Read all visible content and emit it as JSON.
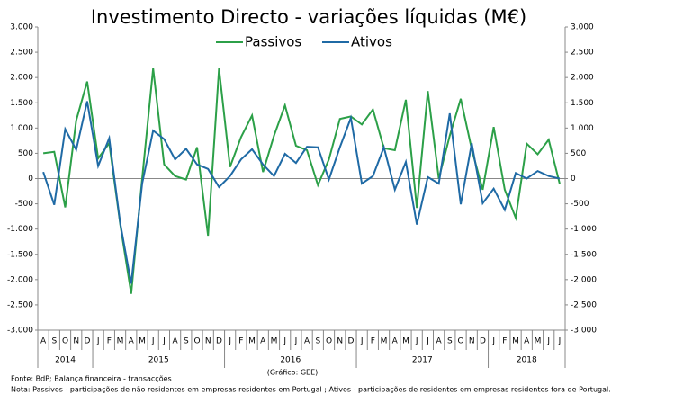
{
  "chart_data": {
    "type": "line",
    "title": "Investimento  Directo - variações líquidas (M€)",
    "categories": [
      "A",
      "S",
      "O",
      "N",
      "D",
      "J",
      "F",
      "M",
      "A",
      "M",
      "J",
      "J",
      "A",
      "S",
      "O",
      "N",
      "D",
      "J",
      "F",
      "M",
      "A",
      "M",
      "J",
      "J",
      "A",
      "S",
      "O",
      "N",
      "D",
      "J",
      "F",
      "M",
      "A",
      "M",
      "J",
      "J",
      "A",
      "S",
      "O",
      "N",
      "D",
      "J",
      "F",
      "M",
      "A",
      "M",
      "J",
      "J"
    ],
    "year_labels": [
      "2014",
      null,
      null,
      null,
      null,
      "2015",
      null,
      null,
      null,
      null,
      null,
      null,
      null,
      null,
      null,
      null,
      null,
      "2016",
      null,
      null,
      null,
      null,
      null,
      null,
      null,
      null,
      null,
      null,
      null,
      "2017",
      null,
      null,
      null,
      null,
      null,
      null,
      null,
      null,
      null,
      null,
      null,
      "2018",
      null,
      null,
      null,
      null,
      null,
      null
    ],
    "series": [
      {
        "name": "Passivos",
        "color": "#2ca048",
        "values": [
          500,
          530,
          -570,
          1150,
          1920,
          400,
          700,
          -900,
          -2280,
          0,
          2180,
          280,
          50,
          -20,
          620,
          -1130,
          2180,
          230,
          820,
          1250,
          130,
          850,
          1450,
          650,
          560,
          -130,
          380,
          1180,
          1230,
          1070,
          1370,
          600,
          560,
          1560,
          -580,
          1730,
          0,
          850,
          1580,
          580,
          -220,
          1020,
          -220,
          -780,
          690,
          480,
          770,
          -100
        ]
      },
      {
        "name": "Ativos",
        "color": "#1f6aa5",
        "values": [
          130,
          -520,
          980,
          570,
          1530,
          250,
          800,
          -880,
          -2080,
          -100,
          950,
          780,
          380,
          590,
          280,
          190,
          -170,
          50,
          380,
          580,
          280,
          50,
          490,
          310,
          630,
          620,
          -20,
          620,
          1200,
          -100,
          50,
          620,
          -220,
          330,
          -910,
          30,
          -100,
          1290,
          -510,
          700,
          -490,
          -200,
          -620,
          110,
          0,
          150,
          50,
          0
        ]
      }
    ],
    "ylim": [
      -3000,
      3000
    ],
    "yticks": [
      {
        "value": -3000,
        "label": "-3.000"
      },
      {
        "value": -2500,
        "label": "-2.500"
      },
      {
        "value": -2000,
        "label": "-2.000"
      },
      {
        "value": -1500,
        "label": "-1.500"
      },
      {
        "value": -1000,
        "label": "-1.000"
      },
      -500,
      0,
      500,
      {
        "value": 1000,
        "label": "1.000"
      },
      {
        "value": 1500,
        "label": "1.500"
      },
      {
        "value": 2000,
        "label": "2.000"
      },
      {
        "value": 2500,
        "label": "2.500"
      },
      {
        "value": 3000,
        "label": "3.000"
      }
    ],
    "y2lim": [
      -3000,
      3000
    ],
    "y2ticks": [
      {
        "value": -3000,
        "label": "-3.000"
      },
      {
        "value": -2500,
        "label": "-2.500"
      },
      {
        "value": -2000,
        "label": "-2.000"
      },
      {
        "value": -1500,
        "label": "-1.500"
      },
      {
        "value": -1000,
        "label": "-1.000"
      },
      -500,
      0,
      500,
      {
        "value": 1000,
        "label": "1.000"
      },
      {
        "value": 1500,
        "label": "1.500"
      },
      {
        "value": 2000,
        "label": "2.000"
      },
      {
        "value": 2500,
        "label": "2.500"
      },
      {
        "value": 3000,
        "label": "3.000"
      }
    ],
    "source": "Fonte: BdP; Balança financeira - transacções",
    "credit": "(Gráfico: GEE)",
    "note": "Nota: Passivos - participações de não residentes em empresas residentes em Portugal ; Ativos - participações de residentes em empresas residentes fora de Portugal."
  }
}
